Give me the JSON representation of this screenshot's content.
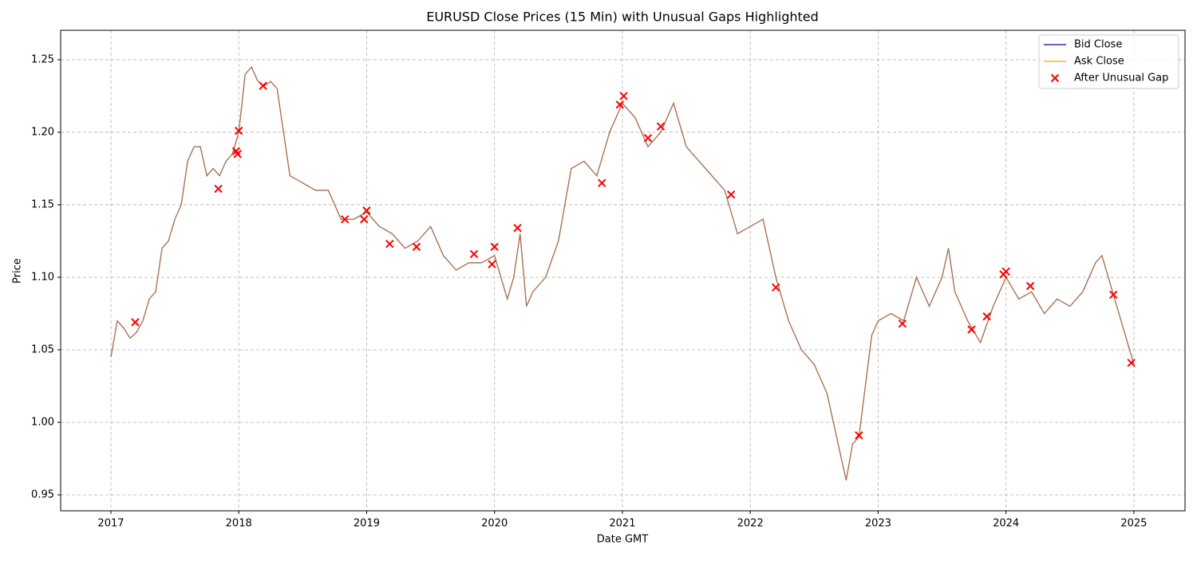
{
  "chart_data": {
    "type": "line",
    "title": "EURUSD Close Prices (15 Min) with Unusual Gaps Highlighted",
    "x_label": "Date GMT",
    "y_label": "Price",
    "x": [
      2017.0,
      2017.05,
      2017.1,
      2017.15,
      2017.2,
      2017.25,
      2017.3,
      2017.35,
      2017.4,
      2017.45,
      2017.5,
      2017.55,
      2017.6,
      2017.65,
      2017.7,
      2017.75,
      2017.8,
      2017.85,
      2017.9,
      2017.95,
      2018.0,
      2018.05,
      2018.1,
      2018.15,
      2018.2,
      2018.25,
      2018.3,
      2018.35,
      2018.4,
      2018.5,
      2018.6,
      2018.7,
      2018.8,
      2018.9,
      2019.0,
      2019.1,
      2019.2,
      2019.3,
      2019.4,
      2019.5,
      2019.6,
      2019.7,
      2019.8,
      2019.9,
      2020.0,
      2020.1,
      2020.15,
      2020.2,
      2020.25,
      2020.3,
      2020.4,
      2020.5,
      2020.6,
      2020.7,
      2020.8,
      2020.9,
      2021.0,
      2021.1,
      2021.2,
      2021.3,
      2021.4,
      2021.5,
      2021.6,
      2021.7,
      2021.8,
      2021.9,
      2022.0,
      2022.1,
      2022.2,
      2022.3,
      2022.4,
      2022.5,
      2022.6,
      2022.7,
      2022.75,
      2022.8,
      2022.85,
      2022.95,
      2023.0,
      2023.1,
      2023.2,
      2023.3,
      2023.4,
      2023.5,
      2023.55,
      2023.6,
      2023.7,
      2023.8,
      2023.9,
      2024.0,
      2024.1,
      2024.2,
      2024.3,
      2024.4,
      2024.5,
      2024.6,
      2024.7,
      2024.75,
      2024.8,
      2024.9,
      2025.0
    ],
    "series": [
      {
        "name": "Bid Close",
        "color": "#0000cc",
        "values": [
          1.045,
          1.07,
          1.065,
          1.058,
          1.062,
          1.07,
          1.085,
          1.09,
          1.12,
          1.125,
          1.14,
          1.15,
          1.18,
          1.19,
          1.19,
          1.17,
          1.175,
          1.17,
          1.18,
          1.185,
          1.2,
          1.24,
          1.245,
          1.235,
          1.232,
          1.235,
          1.23,
          1.2,
          1.17,
          1.165,
          1.16,
          1.16,
          1.14,
          1.14,
          1.145,
          1.135,
          1.13,
          1.12,
          1.125,
          1.135,
          1.115,
          1.105,
          1.11,
          1.11,
          1.115,
          1.085,
          1.1,
          1.13,
          1.08,
          1.09,
          1.1,
          1.125,
          1.175,
          1.18,
          1.17,
          1.2,
          1.22,
          1.21,
          1.19,
          1.2,
          1.22,
          1.19,
          1.18,
          1.17,
          1.16,
          1.13,
          1.135,
          1.14,
          1.1,
          1.07,
          1.05,
          1.04,
          1.02,
          0.98,
          0.96,
          0.985,
          0.99,
          1.06,
          1.07,
          1.075,
          1.07,
          1.1,
          1.08,
          1.1,
          1.12,
          1.09,
          1.07,
          1.055,
          1.08,
          1.1,
          1.085,
          1.09,
          1.075,
          1.085,
          1.08,
          1.09,
          1.11,
          1.115,
          1.1,
          1.07,
          1.04
        ]
      },
      {
        "name": "Ask Close",
        "color": "#ffa500",
        "values": [
          1.045,
          1.07,
          1.065,
          1.058,
          1.062,
          1.07,
          1.085,
          1.09,
          1.12,
          1.125,
          1.14,
          1.15,
          1.18,
          1.19,
          1.19,
          1.17,
          1.175,
          1.17,
          1.18,
          1.185,
          1.2,
          1.24,
          1.245,
          1.235,
          1.232,
          1.235,
          1.23,
          1.2,
          1.17,
          1.165,
          1.16,
          1.16,
          1.14,
          1.14,
          1.145,
          1.135,
          1.13,
          1.12,
          1.125,
          1.135,
          1.115,
          1.105,
          1.11,
          1.11,
          1.115,
          1.085,
          1.1,
          1.13,
          1.08,
          1.09,
          1.1,
          1.125,
          1.175,
          1.18,
          1.17,
          1.2,
          1.22,
          1.21,
          1.19,
          1.2,
          1.22,
          1.19,
          1.18,
          1.17,
          1.16,
          1.13,
          1.135,
          1.14,
          1.1,
          1.07,
          1.05,
          1.04,
          1.02,
          0.98,
          0.96,
          0.985,
          0.99,
          1.06,
          1.07,
          1.075,
          1.07,
          1.1,
          1.08,
          1.1,
          1.12,
          1.09,
          1.07,
          1.055,
          1.08,
          1.1,
          1.085,
          1.09,
          1.075,
          1.085,
          1.08,
          1.09,
          1.11,
          1.115,
          1.1,
          1.07,
          1.04
        ]
      },
      {
        "name": "After Unusual Gap",
        "type": "scatter",
        "color": "#ff0000",
        "x": [
          2017.19,
          2017.84,
          2017.98,
          2017.99,
          2018.0,
          2018.19,
          2018.83,
          2018.98,
          2019.0,
          2019.18,
          2019.39,
          2019.84,
          2019.98,
          2020.0,
          2020.18,
          2020.84,
          2020.98,
          2021.01,
          2021.2,
          2021.3,
          2021.85,
          2022.2,
          2022.85,
          2023.19,
          2023.73,
          2023.85,
          2023.98,
          2024.0,
          2024.19,
          2024.84,
          2024.98
        ],
        "values": [
          1.069,
          1.161,
          1.187,
          1.185,
          1.201,
          1.232,
          1.14,
          1.14,
          1.146,
          1.123,
          1.121,
          1.116,
          1.109,
          1.121,
          1.134,
          1.165,
          1.219,
          1.225,
          1.196,
          1.204,
          1.157,
          1.093,
          0.991,
          1.068,
          1.064,
          1.073,
          1.102,
          1.104,
          1.094,
          1.088,
          1.041
        ]
      }
    ],
    "xlim": [
      2016.607,
      2025.4
    ],
    "xticks": [
      2017,
      2018,
      2019,
      2020,
      2021,
      2022,
      2023,
      2024,
      2025
    ],
    "ylim": [
      0.939,
      1.2703
    ],
    "yticks": [
      0.95,
      {
        "value": 1,
        "label": "1.00"
      },
      1.05,
      {
        "value": 1.1,
        "label": "1.10"
      },
      1.15,
      {
        "value": 1.2,
        "label": "1.20"
      },
      1.25
    ],
    "grid": true,
    "legend": "upper right"
  }
}
